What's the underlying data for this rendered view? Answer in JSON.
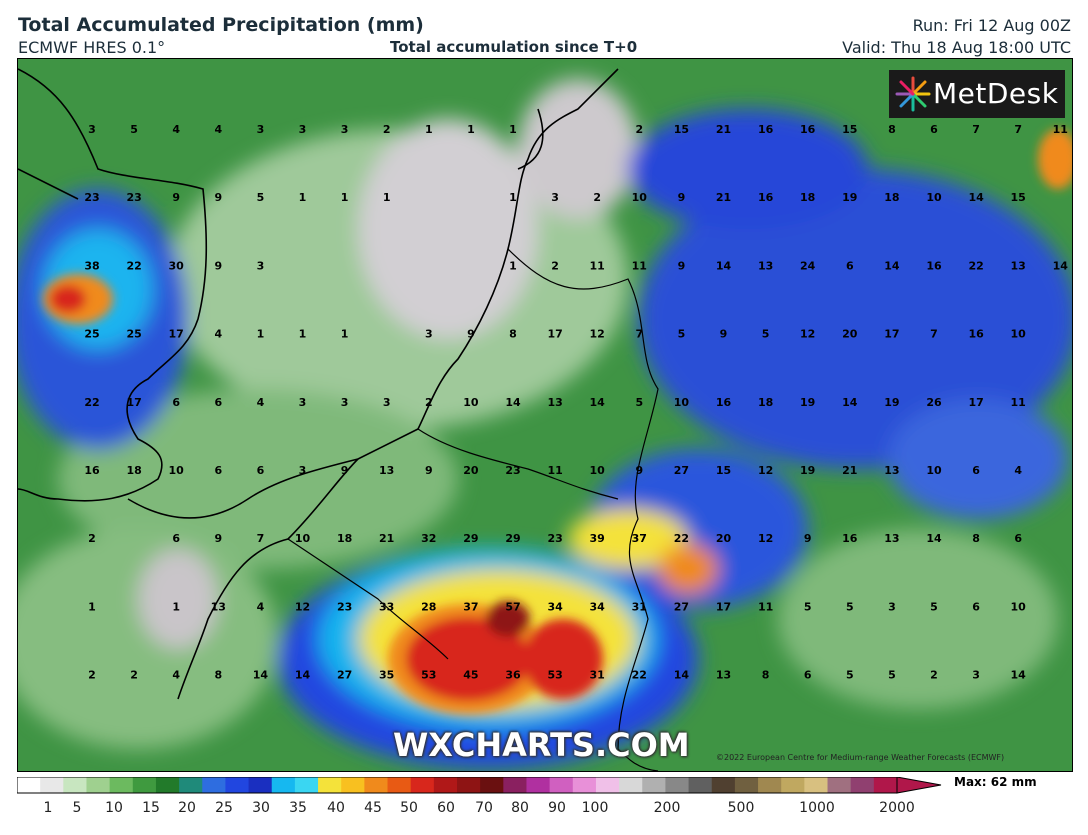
{
  "header": {
    "title": "Total Accumulated Precipitation (mm)",
    "model": "ECMWF HRES 0.1°",
    "caption": "Total accumulation since T+0",
    "run": "Run: Fri 12 Aug 00Z",
    "valid": "Valid: Thu 18 Aug 18:00 UTC"
  },
  "logo": {
    "text": "MetDesk",
    "icon": "metdesk-starburst-icon"
  },
  "watermark": "WXCHARTS.COM",
  "copyright": "©2022 European Centre for Medium-range Weather Forecasts (ECMWF)",
  "legend": {
    "max_label": "Max: 62 mm",
    "ticks": [
      "1",
      "5",
      "10",
      "15",
      "20",
      "25",
      "30",
      "35",
      "40",
      "45",
      "50",
      "60",
      "70",
      "80",
      "90",
      "100",
      "200",
      "500",
      "1000",
      "2000"
    ]
  },
  "colors": {
    "light_grey": "#d6d2d6",
    "light_green": "#a8cfa0",
    "mid_green": "#4e9a4a",
    "dark_green": "#1f7a2e",
    "blue": "#2146e0",
    "cyan": "#16b8f0",
    "yellow": "#f4e23a",
    "orange": "#f08a1c",
    "red": "#d8271c",
    "dark_red": "#8e1414",
    "magenta": "#c0208a"
  },
  "grid_values": [
    [
      "3",
      "5",
      "4",
      "4",
      "3",
      "3",
      "3",
      "2",
      "1",
      "1",
      "1",
      "",
      "",
      "2",
      "15",
      "21",
      "16",
      "16",
      "15",
      "8",
      "6",
      "7",
      "7",
      "11"
    ],
    [
      "23",
      "23",
      "9",
      "9",
      "5",
      "1",
      "1",
      "1",
      "",
      "",
      "1",
      "3",
      "2",
      "10",
      "9",
      "21",
      "16",
      "18",
      "19",
      "18",
      "10",
      "14",
      "15",
      ""
    ],
    [
      "38",
      "22",
      "30",
      "9",
      "3",
      "",
      "",
      "",
      "",
      "",
      "1",
      "2",
      "11",
      "11",
      "9",
      "14",
      "13",
      "24",
      "6",
      "14",
      "16",
      "22",
      "13",
      "14"
    ],
    [
      "25",
      "25",
      "17",
      "4",
      "1",
      "1",
      "1",
      "",
      "3",
      "9",
      "8",
      "17",
      "12",
      "7",
      "5",
      "9",
      "5",
      "12",
      "20",
      "17",
      "7",
      "16",
      "10",
      ""
    ],
    [
      "22",
      "17",
      "6",
      "6",
      "4",
      "3",
      "3",
      "3",
      "2",
      "10",
      "14",
      "13",
      "14",
      "5",
      "10",
      "16",
      "18",
      "19",
      "14",
      "19",
      "26",
      "17",
      "11",
      ""
    ],
    [
      "16",
      "18",
      "10",
      "6",
      "6",
      "3",
      "9",
      "13",
      "9",
      "20",
      "23",
      "11",
      "10",
      "9",
      "27",
      "15",
      "12",
      "19",
      "21",
      "13",
      "10",
      "6",
      "4",
      ""
    ],
    [
      "2",
      "",
      "6",
      "9",
      "7",
      "10",
      "18",
      "21",
      "32",
      "29",
      "29",
      "23",
      "39",
      "37",
      "22",
      "20",
      "12",
      "9",
      "16",
      "13",
      "14",
      "8",
      "6",
      ""
    ],
    [
      "1",
      "",
      "1",
      "13",
      "4",
      "12",
      "23",
      "33",
      "28",
      "37",
      "57",
      "34",
      "34",
      "31",
      "27",
      "17",
      "11",
      "5",
      "5",
      "3",
      "5",
      "6",
      "10",
      ""
    ],
    [
      "2",
      "2",
      "4",
      "8",
      "14",
      "14",
      "27",
      "35",
      "53",
      "45",
      "36",
      "53",
      "31",
      "22",
      "14",
      "13",
      "8",
      "6",
      "5",
      "5",
      "2",
      "3",
      "14",
      ""
    ]
  ]
}
